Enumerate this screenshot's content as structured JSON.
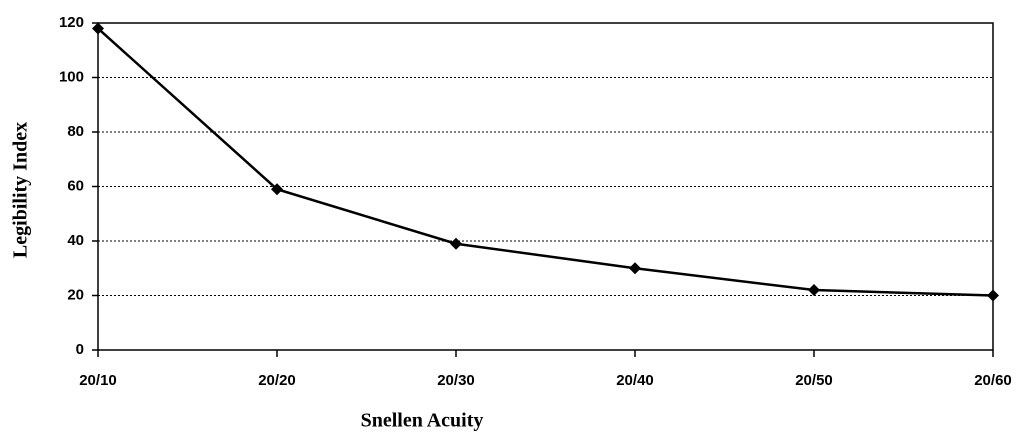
{
  "chart_data": {
    "type": "line",
    "x_label": "Snellen Acuity",
    "y_label": "Legibility Index",
    "categories": [
      "20/10",
      "20/20",
      "20/30",
      "20/40",
      "20/50",
      "20/60"
    ],
    "series": [
      {
        "name": "Legibility Index",
        "color": "#000000",
        "values": [
          118,
          59,
          39,
          30,
          22,
          20
        ]
      }
    ],
    "ylim": [
      0,
      120
    ],
    "yticks": [
      0,
      20,
      40,
      60,
      80,
      100,
      120
    ],
    "grid": true
  }
}
